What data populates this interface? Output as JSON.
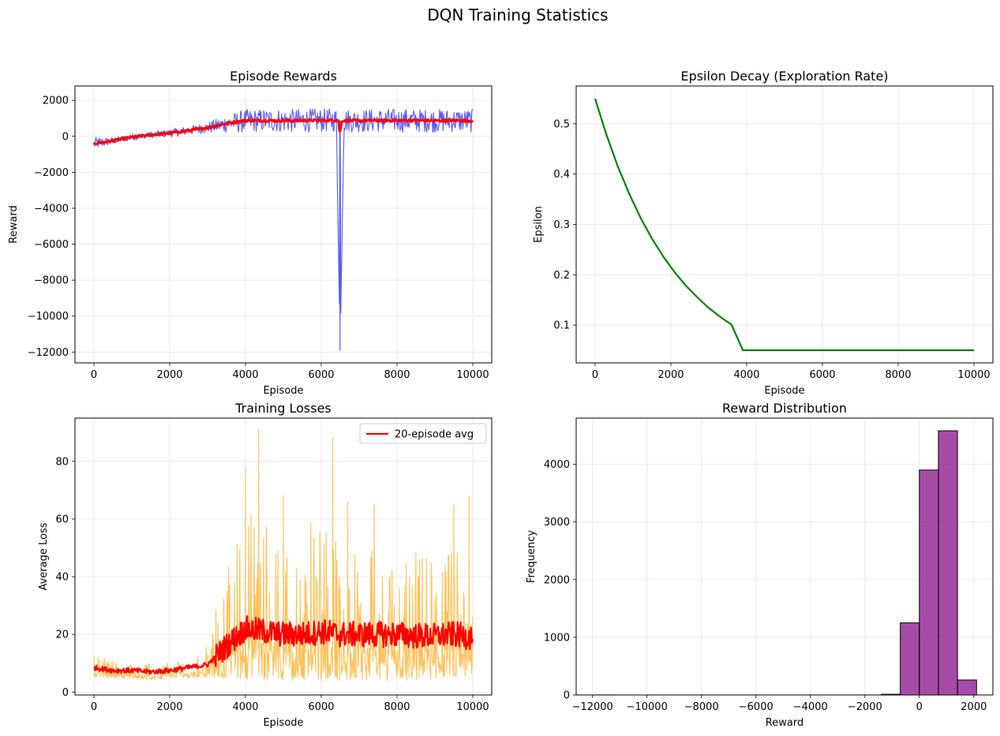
{
  "figure": {
    "title": "DQN Training Statistics"
  },
  "chart_data": [
    {
      "id": "rewards",
      "type": "line",
      "title": "Episode Rewards",
      "xlabel": "Episode",
      "ylabel": "Reward",
      "xlim": [
        -500,
        10500
      ],
      "ylim": [
        -12600,
        2800
      ],
      "xticks": [
        0,
        2000,
        4000,
        6000,
        8000,
        10000
      ],
      "yticks": [
        2000,
        0,
        -2000,
        -4000,
        -6000,
        -8000,
        -10000,
        -12000
      ],
      "ytick_labels": [
        "2000",
        "0",
        "−2000",
        "−4000",
        "−6000",
        "−8000",
        "−10000",
        "−12000"
      ],
      "grid": true,
      "legend": null,
      "series": [
        {
          "role": "raw",
          "color": "#3b3bf5",
          "x": [
            0,
            500,
            1000,
            1500,
            2000,
            2500,
            3000,
            3500,
            4000,
            4500,
            5000,
            5500,
            6000,
            6400,
            6500,
            6600,
            7000,
            7500,
            8000,
            8500,
            9000,
            9500,
            10000
          ],
          "y": [
            -400,
            -250,
            -50,
            80,
            180,
            320,
            480,
            700,
            850,
            880,
            870,
            880,
            890,
            900,
            -11900,
            880,
            870,
            880,
            890,
            880,
            870,
            880,
            870
          ],
          "spread": [
            350,
            200,
            180,
            180,
            220,
            250,
            300,
            500,
            650,
            650,
            650,
            650,
            650,
            650,
            0,
            650,
            650,
            650,
            650,
            650,
            650,
            650,
            650
          ]
        },
        {
          "role": "moving_avg",
          "color": "#ff0000",
          "x": [
            0,
            500,
            1000,
            1500,
            2000,
            2500,
            3000,
            3500,
            4000,
            4500,
            5000,
            5500,
            6000,
            6450,
            6500,
            6550,
            7000,
            7500,
            8000,
            8500,
            9000,
            9500,
            10000
          ],
          "y": [
            -400,
            -250,
            -50,
            80,
            180,
            320,
            480,
            720,
            880,
            880,
            870,
            880,
            890,
            900,
            300,
            880,
            870,
            880,
            890,
            880,
            870,
            880,
            870
          ]
        }
      ]
    },
    {
      "id": "epsilon",
      "type": "line",
      "title": "Epsilon Decay (Exploration Rate)",
      "xlabel": "Episode",
      "ylabel": "Epsilon",
      "xlim": [
        -500,
        10500
      ],
      "ylim": [
        0.025,
        0.575
      ],
      "xticks": [
        0,
        2000,
        4000,
        6000,
        8000,
        10000
      ],
      "yticks": [
        0.1,
        0.2,
        0.3,
        0.4,
        0.5
      ],
      "ytick_labels": [
        "0.1",
        "0.2",
        "0.3",
        "0.4",
        "0.5"
      ],
      "grid": true,
      "legend": null,
      "series": [
        {
          "color": "#008000",
          "x": [
            0,
            300,
            600,
            900,
            1200,
            1500,
            1800,
            2100,
            2400,
            2700,
            3000,
            3300,
            3600,
            3900,
            5000,
            6000,
            7000,
            8000,
            9000,
            10000
          ],
          "y": [
            0.55,
            0.478,
            0.415,
            0.361,
            0.313,
            0.272,
            0.236,
            0.205,
            0.178,
            0.155,
            0.134,
            0.1165,
            0.101,
            0.05,
            0.05,
            0.05,
            0.05,
            0.05,
            0.05,
            0.05
          ]
        }
      ]
    },
    {
      "id": "losses",
      "type": "line",
      "title": "Training Losses",
      "xlabel": "Episode",
      "ylabel": "Average Loss",
      "xlim": [
        -500,
        10500
      ],
      "ylim": [
        -1,
        95
      ],
      "xticks": [
        0,
        2000,
        4000,
        6000,
        8000,
        10000
      ],
      "yticks": [
        0,
        20,
        40,
        60,
        80
      ],
      "ytick_labels": [
        "0",
        "20",
        "40",
        "60",
        "80"
      ],
      "grid": true,
      "legend": {
        "position": "upper right",
        "entries": [
          {
            "label": "20-episode avg",
            "color": "#ff0000"
          }
        ]
      },
      "series": [
        {
          "role": "raw",
          "color": "#fdb73f",
          "x": [
            0,
            500,
            1000,
            1500,
            2000,
            2500,
            3000,
            3500,
            4000,
            4500,
            5000,
            5500,
            6000,
            6500,
            7000,
            7500,
            8000,
            8500,
            9000,
            9500,
            10000
          ],
          "low": [
            5,
            5,
            5,
            4,
            5,
            5,
            5,
            5,
            4,
            4,
            4,
            4,
            4,
            4,
            4,
            4,
            4,
            4,
            4,
            4,
            5
          ],
          "high": [
            13,
            11,
            10,
            10,
            11,
            12,
            18,
            45,
            65,
            60,
            55,
            58,
            60,
            55,
            50,
            52,
            50,
            50,
            48,
            52,
            35
          ],
          "peaks": [
            [
              4000,
              78
            ],
            [
              4350,
              91
            ],
            [
              5000,
              68
            ],
            [
              6300,
              88
            ],
            [
              6700,
              66
            ],
            [
              7400,
              65
            ],
            [
              9500,
              65
            ],
            [
              9900,
              68
            ]
          ]
        },
        {
          "role": "moving_avg",
          "color": "#ff0000",
          "name": "20-episode avg",
          "x": [
            0,
            500,
            1000,
            1500,
            2000,
            2500,
            3000,
            3500,
            4000,
            4500,
            5000,
            5500,
            6000,
            6500,
            7000,
            7500,
            8000,
            8500,
            9000,
            9500,
            10000
          ],
          "y": [
            8.5,
            7.5,
            7.5,
            7,
            7.5,
            8.5,
            9.5,
            16,
            22,
            21,
            20,
            20,
            21,
            20,
            20,
            20,
            20,
            19.5,
            19.5,
            20,
            19
          ]
        }
      ]
    },
    {
      "id": "distribution",
      "type": "bar",
      "title": "Reward Distribution",
      "xlabel": "Reward",
      "ylabel": "Frequency",
      "xlim": [
        -12600,
        2700
      ],
      "ylim": [
        0,
        4800
      ],
      "xticks": [
        -12000,
        -10000,
        -8000,
        -6000,
        -4000,
        -2000,
        0,
        2000
      ],
      "xtick_labels": [
        "−12000",
        "−10000",
        "−8000",
        "−6000",
        "−4000",
        "−2000",
        "0",
        "2000"
      ],
      "yticks": [
        0,
        1000,
        2000,
        3000,
        4000
      ],
      "ytick_labels": [
        "0",
        "1000",
        "2000",
        "3000",
        "4000"
      ],
      "grid": true,
      "legend": null,
      "bar_color": "#800080",
      "bins": [
        {
          "x0": -11900,
          "x1": -11200,
          "value": 1
        },
        {
          "x0": -1400,
          "x1": -700,
          "value": 12
        },
        {
          "x0": -700,
          "x1": 0,
          "value": 1250
        },
        {
          "x0": 0,
          "x1": 700,
          "value": 3900
        },
        {
          "x0": 700,
          "x1": 1400,
          "value": 4580
        },
        {
          "x0": 1400,
          "x1": 2100,
          "value": 260
        }
      ]
    }
  ]
}
